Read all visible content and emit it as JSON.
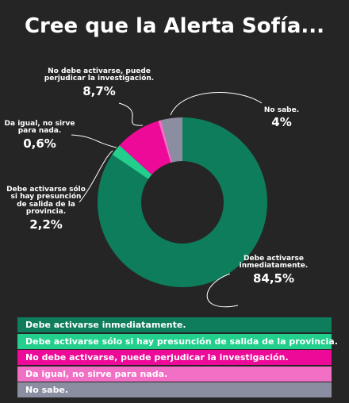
{
  "chart_data": {
    "type": "pie",
    "title": "Cree que la Alerta Sofía...",
    "categories": [
      "Debe activarse inmediatamente.",
      "Debe activarse sólo si hay presunción de salida de la provincia.",
      "No debe activarse, puede perjudicar la investigación.",
      "Da igual, no sirve para nada.",
      "No sabe."
    ],
    "values": [
      84.5,
      2.2,
      8.7,
      0.6,
      4
    ],
    "value_labels": [
      "84,5%",
      "2,2%",
      "8,7%",
      "0,6%",
      "4%"
    ],
    "colors": [
      "#0e7d5c",
      "#22cf8d",
      "#ee0a98",
      "#f26fc6",
      "#8a8ea0"
    ]
  }
}
